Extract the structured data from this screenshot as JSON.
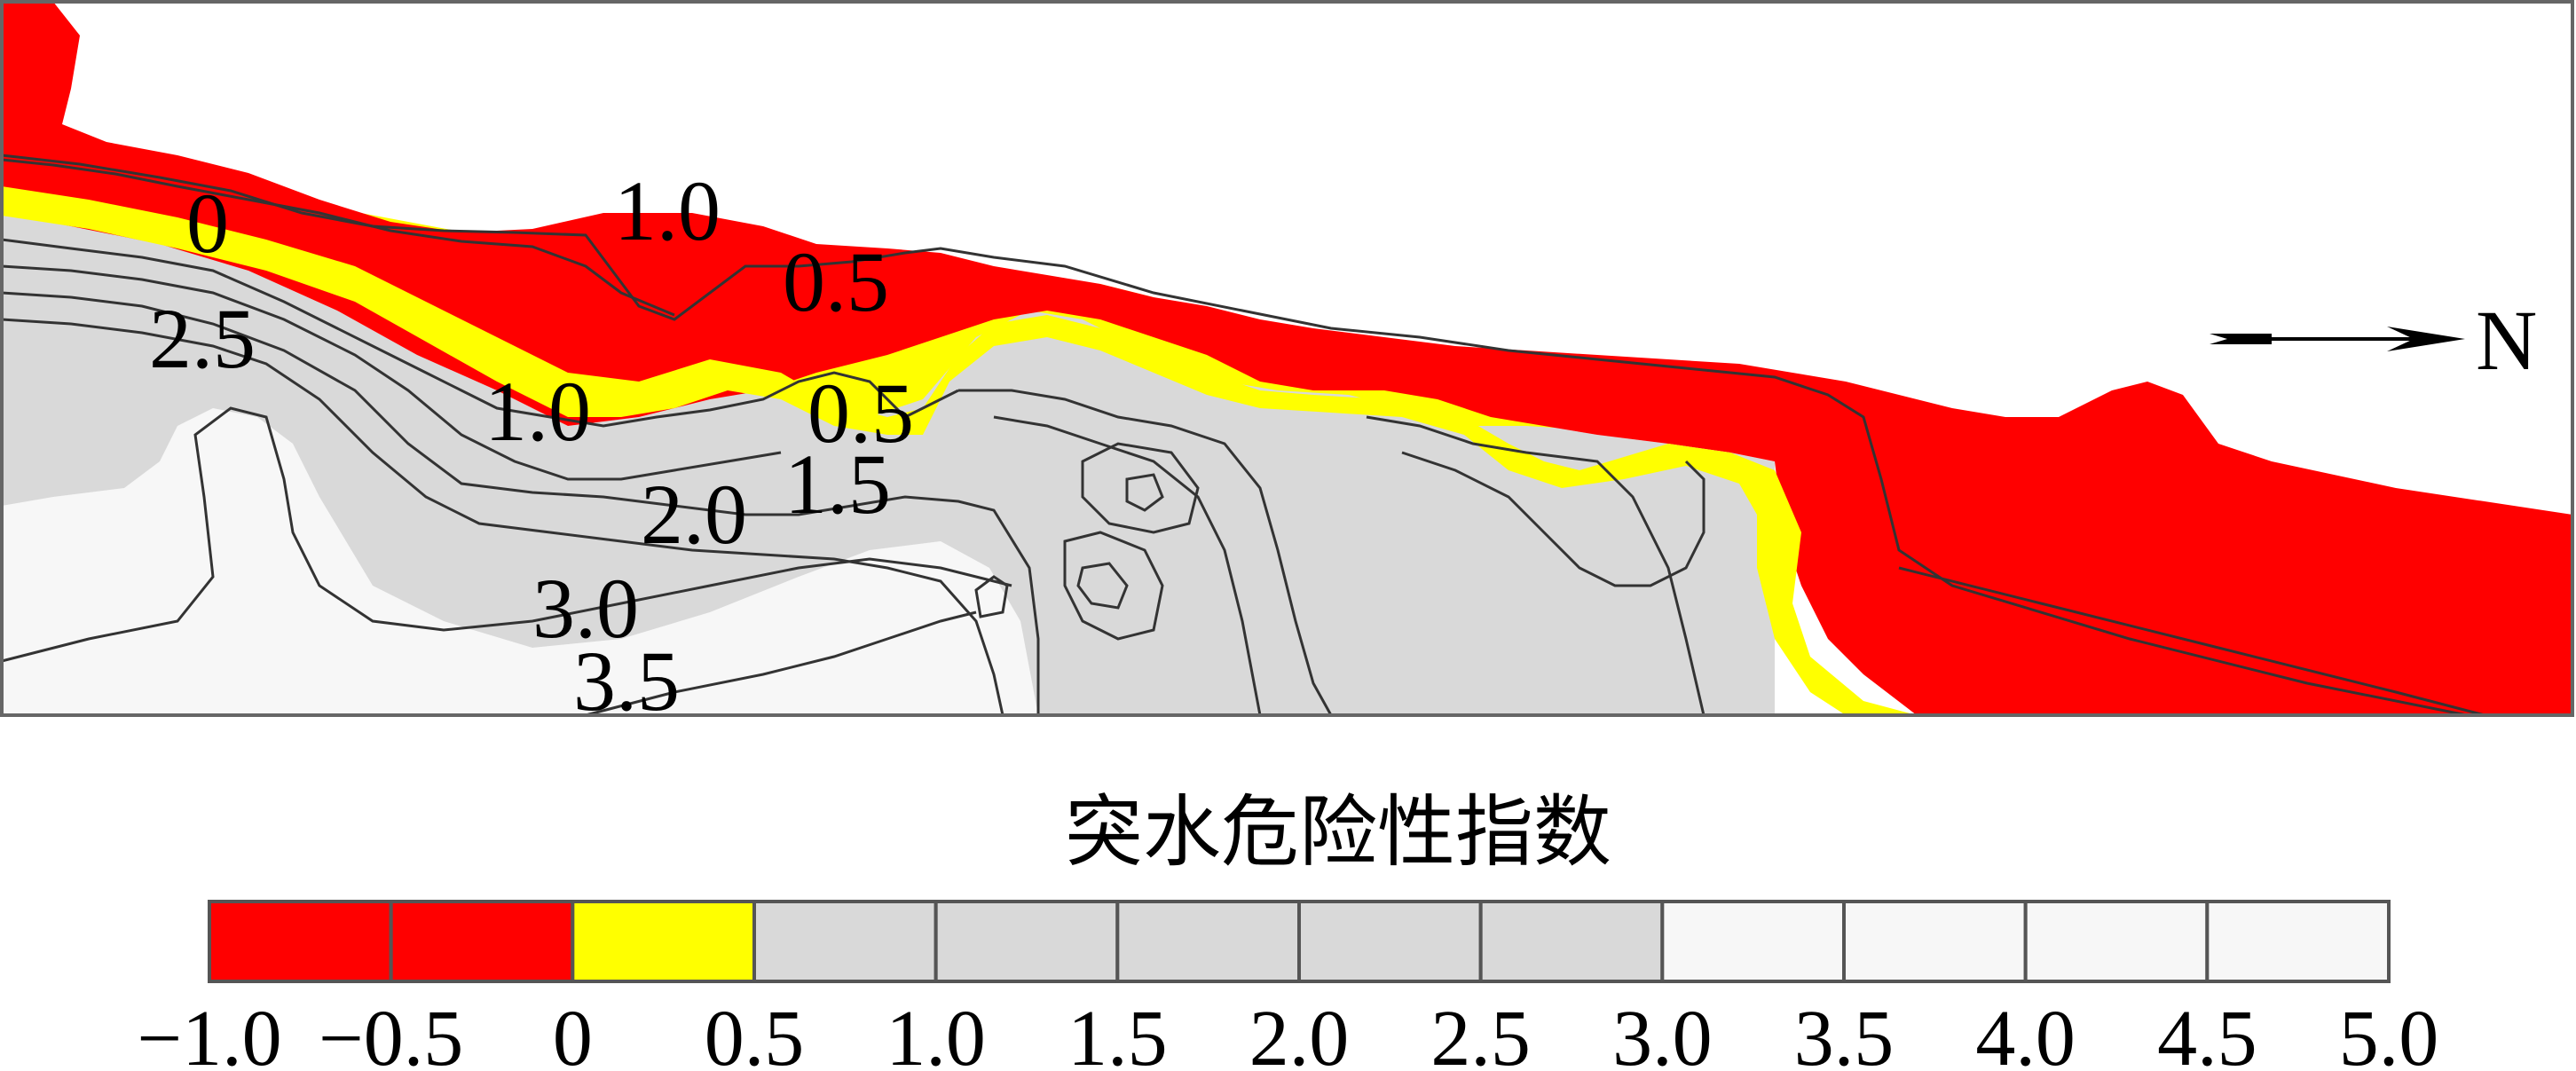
{
  "chart_data": {
    "type": "heatmap",
    "subtype": "filled contour map",
    "title": "",
    "legend": {
      "title": "突水危险性指数",
      "placement": "bottom",
      "breaks": [
        -1.0,
        -0.5,
        0,
        0.5,
        1.0,
        1.5,
        2.0,
        2.5,
        3.0,
        3.5,
        4.0,
        4.5,
        5.0
      ],
      "tick_labels": [
        "−1.0",
        "−0.5",
        "0",
        "0.5",
        "1.0",
        "1.5",
        "2.0",
        "2.5",
        "3.0",
        "3.5",
        "4.0",
        "4.5",
        "5.0"
      ],
      "bins": [
        {
          "from": -1.0,
          "to": -0.5,
          "color": "#ff0000"
        },
        {
          "from": -0.5,
          "to": 0,
          "color": "#ff0000"
        },
        {
          "from": 0,
          "to": 0.5,
          "color": "#ffff00"
        },
        {
          "from": 0.5,
          "to": 1.0,
          "color": "#d9d9d9"
        },
        {
          "from": 1.0,
          "to": 1.5,
          "color": "#d9d9d9"
        },
        {
          "from": 1.5,
          "to": 2.0,
          "color": "#d9d9d9"
        },
        {
          "from": 2.0,
          "to": 2.5,
          "color": "#d9d9d9"
        },
        {
          "from": 2.5,
          "to": 3.0,
          "color": "#d9d9d9"
        },
        {
          "from": 3.0,
          "to": 3.5,
          "color": "#f7f7f7"
        },
        {
          "from": 3.5,
          "to": 4.0,
          "color": "#f7f7f7"
        },
        {
          "from": 4.0,
          "to": 4.5,
          "color": "#f7f7f7"
        },
        {
          "from": 4.5,
          "to": 5.0,
          "color": "#f7f7f7"
        }
      ]
    },
    "contour_labels": [
      "1.0",
      "0",
      "0.5",
      "2.5",
      "1.0",
      "0.5",
      "1.5",
      "2.0",
      "3.0",
      "3.5"
    ],
    "north_arrow": {
      "label": "N",
      "direction": "right"
    },
    "colors": {
      "danger": "#ff0000",
      "warning": "#ffff00",
      "moderate": "#d9d9d9",
      "safe": "#f7f7f7",
      "line": "#333333"
    }
  }
}
